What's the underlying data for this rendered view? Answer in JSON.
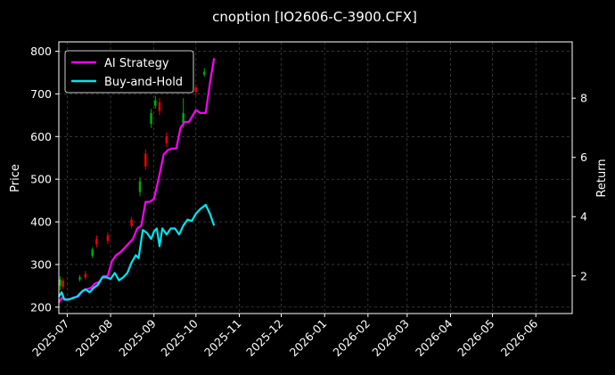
{
  "chart_data": {
    "type": "line",
    "title": "cnoption [IO2606-C-3900.CFX]",
    "ylabel_left": "Price",
    "ylabel_right": "Return",
    "ylim_left": [
      185,
      822
    ],
    "ylim_right": [
      0.73,
      9.9
    ],
    "xlim": [
      "2025-06-25",
      "2026-06-27"
    ],
    "yticks_left": [
      200,
      300,
      400,
      500,
      600,
      700,
      800
    ],
    "yticks_right": [
      2,
      4,
      6,
      8
    ],
    "xticks": [
      "2025-07",
      "2025-08",
      "2025-09",
      "2025-10",
      "2025-11",
      "2025-12",
      "2026-01",
      "2026-02",
      "2026-03",
      "2026-04",
      "2026-05",
      "2026-06"
    ],
    "grid": true,
    "legend_position": "top-left",
    "colors": {
      "ai": "#ff00ff",
      "bh": "#00e5ee",
      "up": "#00aa00",
      "down": "#ee0000",
      "grid": "#555555"
    },
    "series": [
      {
        "name": "AI Strategy",
        "axis": "right",
        "x": [
          "2025-06-25",
          "2025-06-27",
          "2025-06-30",
          "2025-07-03",
          "2025-07-06",
          "2025-07-09",
          "2025-07-12",
          "2025-07-15",
          "2025-07-18",
          "2025-07-21",
          "2025-07-24",
          "2025-07-27",
          "2025-07-30",
          "2025-08-02",
          "2025-08-05",
          "2025-08-08",
          "2025-08-11",
          "2025-08-14",
          "2025-08-17",
          "2025-08-20",
          "2025-08-23",
          "2025-08-26",
          "2025-08-29",
          "2025-09-01",
          "2025-09-04",
          "2025-09-08",
          "2025-09-11",
          "2025-09-14",
          "2025-09-17",
          "2025-09-20",
          "2025-09-23",
          "2025-09-26",
          "2025-10-01",
          "2025-10-04",
          "2025-10-08",
          "2025-10-11",
          "2025-10-14"
        ],
        "values": [
          1.1,
          1.25,
          1.2,
          1.22,
          1.28,
          1.3,
          1.5,
          1.55,
          1.6,
          1.75,
          1.8,
          2.0,
          2.0,
          2.5,
          2.7,
          2.8,
          2.95,
          3.1,
          3.25,
          3.6,
          3.7,
          4.5,
          4.5,
          4.6,
          5.2,
          6.1,
          6.25,
          6.3,
          6.3,
          7.0,
          7.2,
          7.2,
          7.6,
          7.5,
          7.5,
          8.5,
          9.35
        ]
      },
      {
        "name": "Buy-and-Hold",
        "axis": "right",
        "x": [
          "2025-06-25",
          "2025-06-27",
          "2025-06-29",
          "2025-07-02",
          "2025-07-05",
          "2025-07-08",
          "2025-07-11",
          "2025-07-14",
          "2025-07-17",
          "2025-07-20",
          "2025-07-23",
          "2025-07-26",
          "2025-07-29",
          "2025-08-01",
          "2025-08-04",
          "2025-08-07",
          "2025-08-10",
          "2025-08-13",
          "2025-08-16",
          "2025-08-19",
          "2025-08-21",
          "2025-08-24",
          "2025-08-27",
          "2025-08-30",
          "2025-09-01",
          "2025-09-03",
          "2025-09-05",
          "2025-09-07",
          "2025-09-10",
          "2025-09-13",
          "2025-09-16",
          "2025-09-19",
          "2025-09-22",
          "2025-09-25",
          "2025-09-28",
          "2025-10-01",
          "2025-10-04",
          "2025-10-08",
          "2025-10-11",
          "2025-10-14"
        ],
        "values": [
          1.3,
          1.45,
          1.2,
          1.2,
          1.25,
          1.3,
          1.45,
          1.55,
          1.45,
          1.6,
          1.7,
          1.95,
          1.95,
          1.9,
          2.1,
          1.85,
          1.95,
          2.1,
          2.45,
          2.7,
          2.6,
          3.55,
          3.45,
          3.25,
          3.5,
          3.6,
          3.0,
          3.6,
          3.4,
          3.6,
          3.6,
          3.4,
          3.7,
          3.9,
          3.85,
          4.1,
          4.25,
          4.4,
          4.1,
          3.7
        ]
      },
      {
        "name": "",
        "type": "candlestick",
        "axis": "left",
        "candles": [
          {
            "date": "2025-06-26",
            "open": 250,
            "close": 265,
            "low": 240,
            "high": 272
          },
          {
            "date": "2025-06-28",
            "open": 262,
            "close": 248,
            "low": 242,
            "high": 268
          },
          {
            "date": "2025-07-10",
            "open": 265,
            "close": 270,
            "low": 260,
            "high": 275
          },
          {
            "date": "2025-07-14",
            "open": 278,
            "close": 270,
            "low": 265,
            "high": 285
          },
          {
            "date": "2025-07-19",
            "open": 320,
            "close": 335,
            "low": 315,
            "high": 340
          },
          {
            "date": "2025-07-22",
            "open": 360,
            "close": 348,
            "low": 340,
            "high": 368
          },
          {
            "date": "2025-07-30",
            "open": 368,
            "close": 355,
            "low": 348,
            "high": 375
          },
          {
            "date": "2025-08-16",
            "open": 405,
            "close": 390,
            "low": 385,
            "high": 412
          },
          {
            "date": "2025-08-22",
            "open": 470,
            "close": 495,
            "low": 460,
            "high": 505
          },
          {
            "date": "2025-08-26",
            "open": 560,
            "close": 530,
            "low": 522,
            "high": 570
          },
          {
            "date": "2025-08-30",
            "open": 630,
            "close": 655,
            "low": 620,
            "high": 665
          },
          {
            "date": "2025-09-02",
            "open": 672,
            "close": 685,
            "low": 665,
            "high": 695
          },
          {
            "date": "2025-09-05",
            "open": 680,
            "close": 660,
            "low": 650,
            "high": 690
          },
          {
            "date": "2025-09-10",
            "open": 600,
            "close": 585,
            "low": 575,
            "high": 610
          },
          {
            "date": "2025-09-22",
            "open": 630,
            "close": 655,
            "low": 620,
            "high": 690
          },
          {
            "date": "2025-10-01",
            "open": 715,
            "close": 705,
            "low": 695,
            "high": 722
          },
          {
            "date": "2025-10-07",
            "open": 745,
            "close": 752,
            "low": 740,
            "high": 760
          }
        ]
      }
    ]
  }
}
